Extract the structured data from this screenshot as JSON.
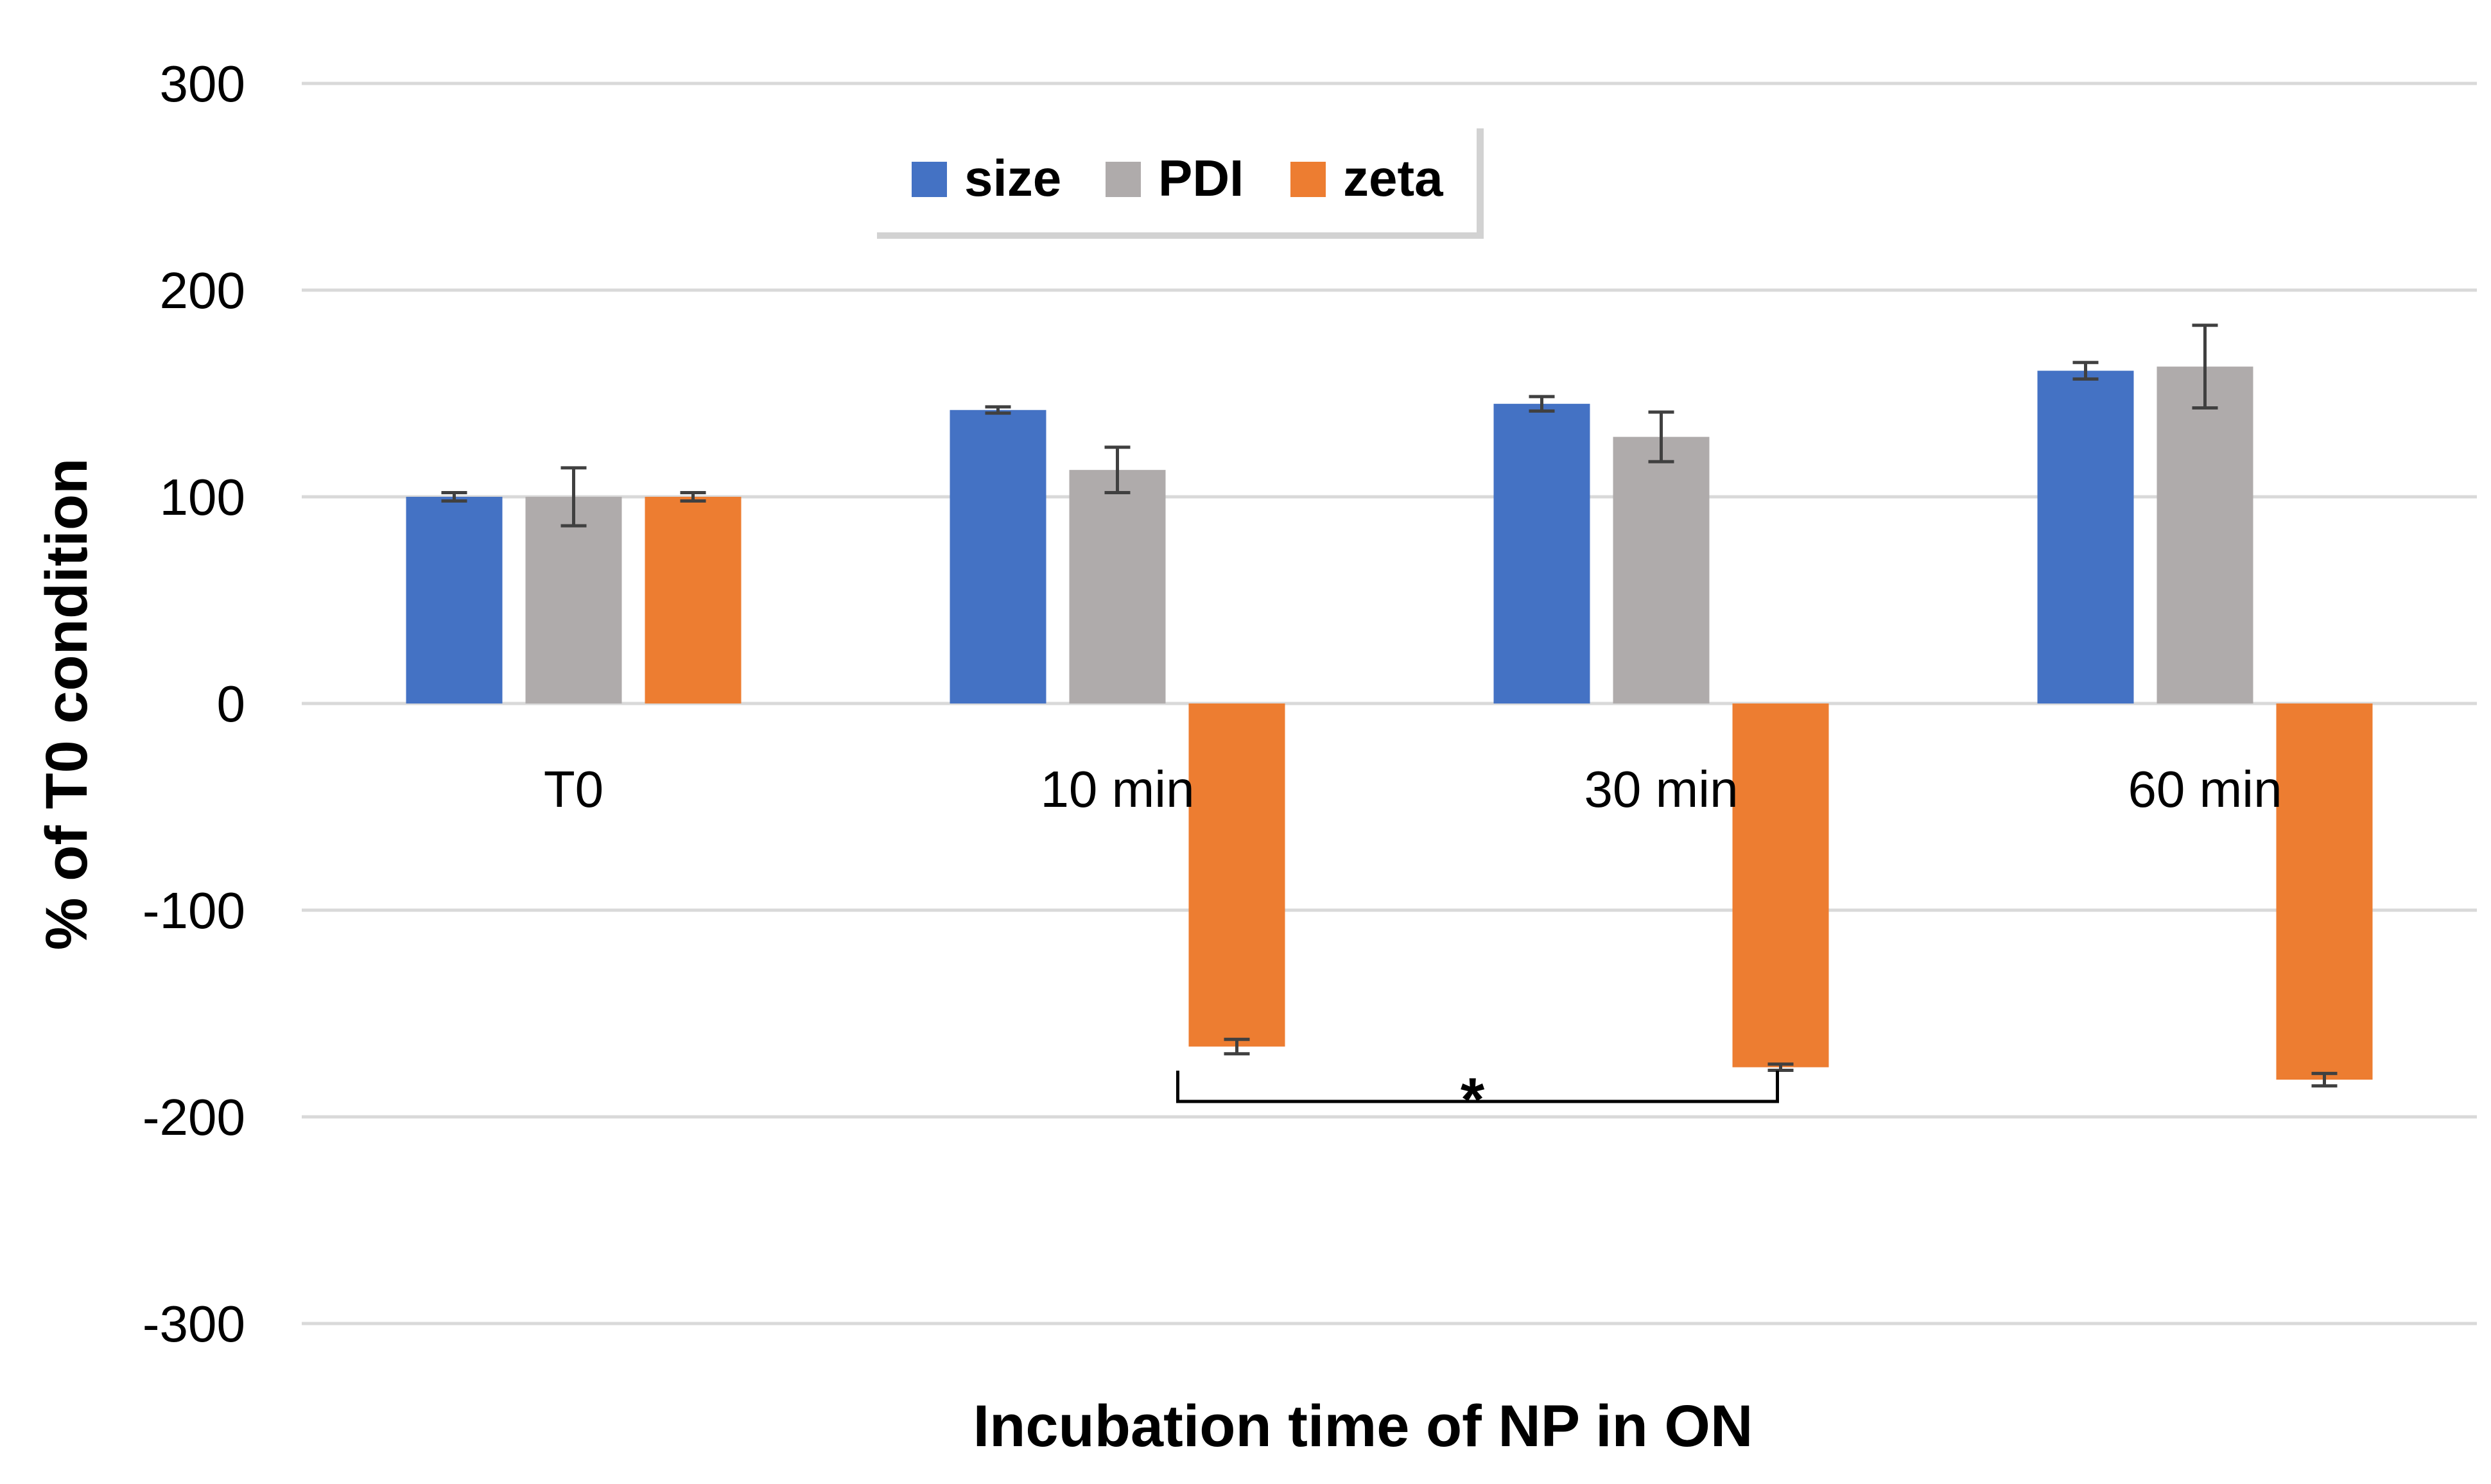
{
  "colors": {
    "size": "#4472C4",
    "PDI": "#AFABAB",
    "zeta": "#ED7D31",
    "grid": "#D9D9D9",
    "error_bar": "#404040"
  },
  "chart_data": {
    "type": "bar",
    "title": "",
    "xlabel": "Incubation time of NP in ON",
    "ylabel": "% of T0 condition",
    "ylim": [
      -300,
      300
    ],
    "yticks": [
      300,
      200,
      100,
      0,
      -100,
      -200,
      -300
    ],
    "ytick_labels": [
      "300",
      "200",
      "100",
      "0",
      "-100",
      "-200",
      "-300"
    ],
    "grid": true,
    "legend_position": "top-center",
    "categories": [
      "T0",
      "10 min",
      "30 min",
      "60 min"
    ],
    "series": [
      {
        "name": "size",
        "color_key": "size",
        "values": [
          100,
          142,
          145,
          161
        ],
        "errors": [
          2,
          1.5,
          3.5,
          4
        ]
      },
      {
        "name": "PDI",
        "color_key": "PDI",
        "values": [
          100,
          113,
          129,
          163
        ],
        "errors": [
          14,
          11,
          12,
          20
        ]
      },
      {
        "name": "zeta",
        "color_key": "zeta",
        "values": [
          100,
          -166,
          -176,
          -182
        ],
        "errors": [
          2,
          3.5,
          1.5,
          3
        ]
      }
    ],
    "annotations": [
      {
        "text": "*",
        "type": "significance-bracket",
        "from": "10 min zeta",
        "to": "30 min zeta"
      }
    ]
  }
}
